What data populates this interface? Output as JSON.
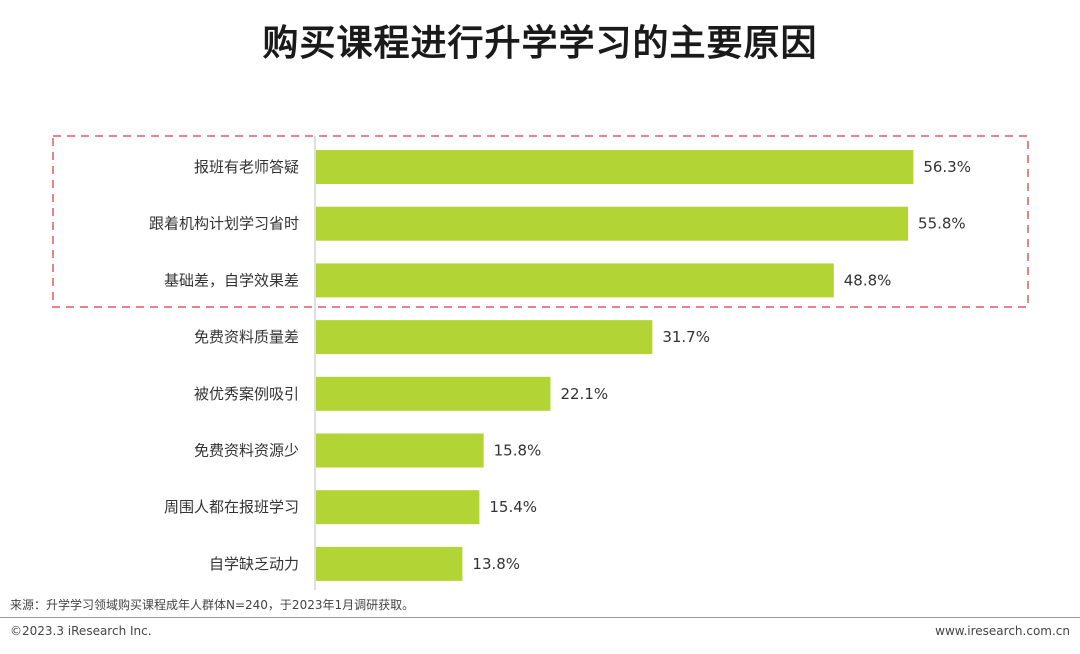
{
  "chart_data": {
    "type": "bar",
    "orientation": "horizontal",
    "title": "购买课程进行升学学习的主要原因",
    "categories": [
      "报班有老师答疑",
      "跟着机构计划学习省时",
      "基础差，自学效果差",
      "免费资料质量差",
      "被优秀案例吸引",
      "免费资料资源少",
      "周围人都在报班学习",
      "自学缺乏动力"
    ],
    "values": [
      56.3,
      55.8,
      48.8,
      31.7,
      22.1,
      15.8,
      15.4,
      13.8
    ],
    "value_labels": [
      "56.3%",
      "55.8%",
      "48.8%",
      "31.7%",
      "22.1%",
      "15.8%",
      "15.4%",
      "13.8%"
    ],
    "highlighted_categories": 3,
    "xlim": [
      0,
      60
    ],
    "xlabel": "",
    "ylabel": "",
    "grid": false
  },
  "colors": {
    "bar": "#b2d435",
    "highlight_border": "#e8838d",
    "axis": "#bfbfbf"
  },
  "footer": {
    "source": "来源：升学学习领域购买课程成年人群体N=240，于2023年1月调研获取。",
    "copyright": "©2023.3 iResearch Inc.",
    "url": "www.iresearch.com.cn"
  }
}
